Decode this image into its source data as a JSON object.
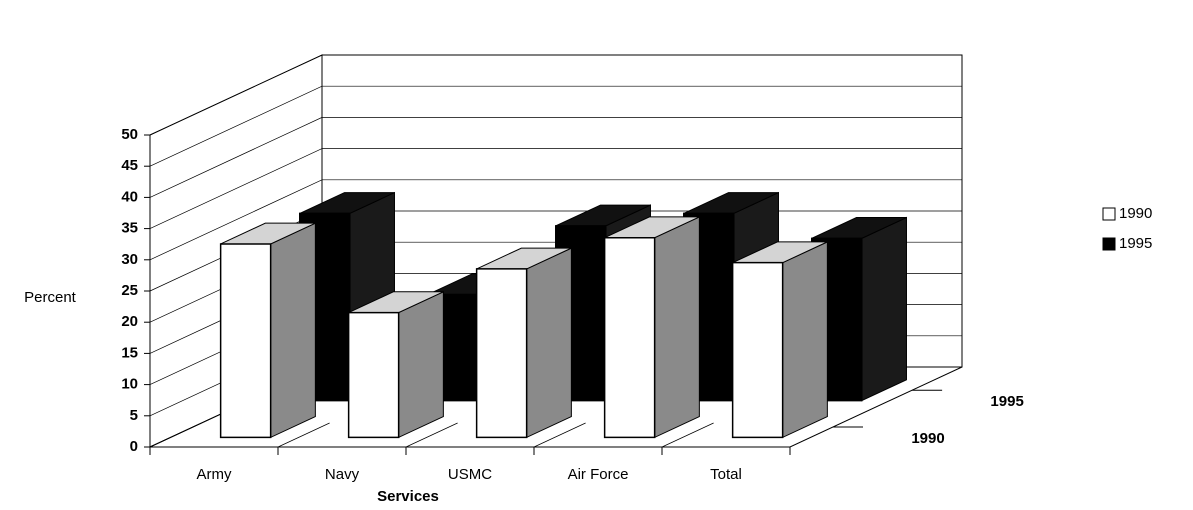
{
  "chart_data": {
    "type": "bar3d",
    "x_label": "Services",
    "y_label": "Percent",
    "categories": [
      "Army",
      "Navy",
      "USMC",
      "Air Force",
      "Total"
    ],
    "series": [
      {
        "name": "1990",
        "color": "#ffffff",
        "values": [
          31,
          20,
          27,
          32,
          28
        ]
      },
      {
        "name": "1995",
        "color": "#000000",
        "values": [
          30,
          17,
          28,
          30,
          26
        ]
      }
    ],
    "ylim": [
      0,
      50
    ],
    "yticks": [
      0,
      5,
      10,
      15,
      20,
      25,
      30,
      35,
      40,
      45,
      50
    ],
    "grid": true,
    "legend": "right"
  }
}
